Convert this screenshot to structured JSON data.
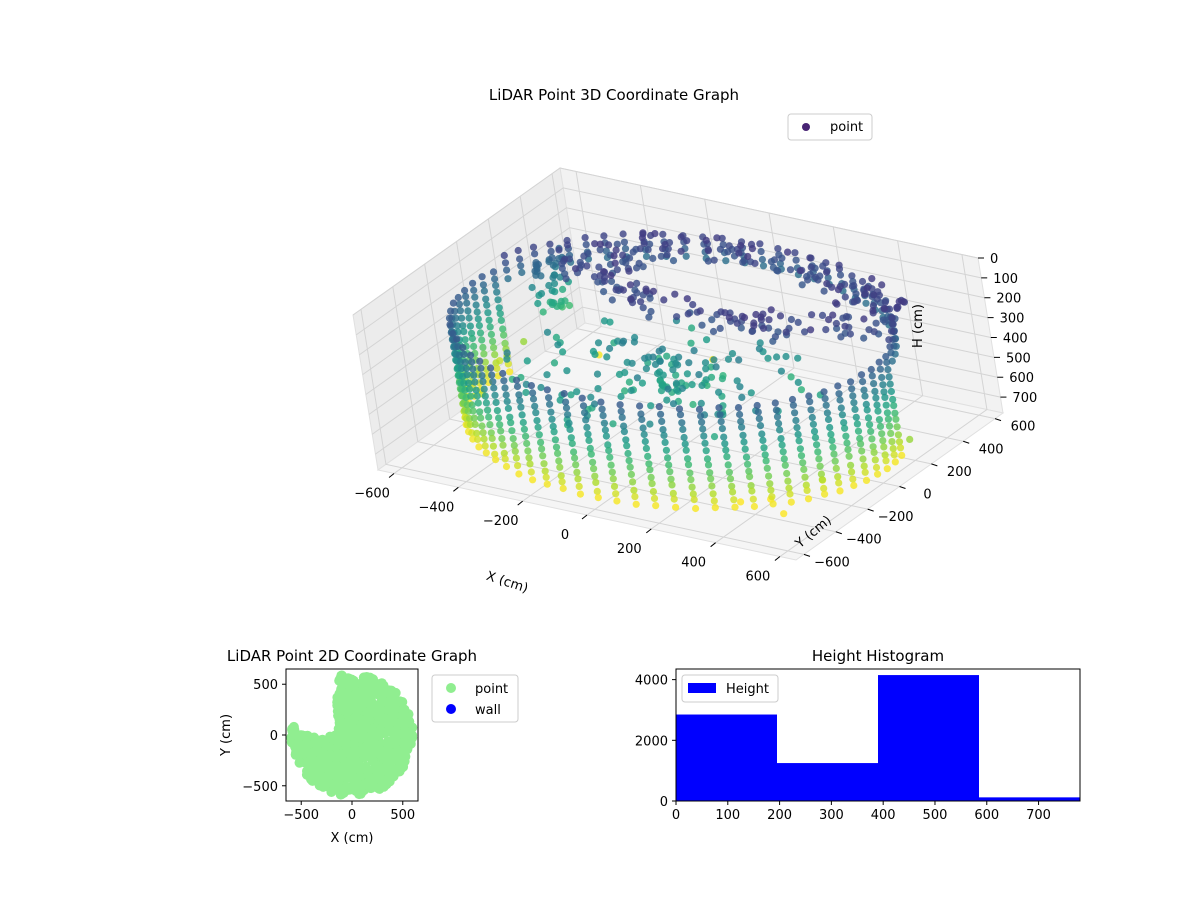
{
  "chart_data": [
    {
      "type": "scatter",
      "projection": "3d",
      "title": "LiDAR Point 3D Coordinate Graph",
      "xlabel": "X (cm)",
      "ylabel": "Y (cm)",
      "zlabel": "H (cm)",
      "xlim": [
        -650,
        650
      ],
      "ylim": [
        -650,
        650
      ],
      "zlim": [
        0,
        780
      ],
      "zaxis_inverted": true,
      "xticks": [
        -600,
        -400,
        -200,
        0,
        200,
        400,
        600
      ],
      "yticks": [
        -600,
        -400,
        -200,
        0,
        200,
        400,
        600
      ],
      "zticks": [
        0,
        100,
        200,
        300,
        400,
        500,
        600,
        700
      ],
      "colormap": "viridis",
      "color_by": "height",
      "grid": true,
      "legend": {
        "entries": [
          "point"
        ],
        "placement": "upper-right"
      },
      "series": [
        {
          "name": "point",
          "description_of_shape": "outer ring wall at radius ~620cm spanning heights 150-700, inner ring top layer at ~200, scattered interior points ~350-450",
          "outliers": [
            {
              "x": -600,
              "y": 200,
              "h": 600
            },
            {
              "x": -630,
              "y": 100,
              "h": 650
            },
            {
              "x": -560,
              "y": -150,
              "h": 650
            },
            {
              "x": -450,
              "y": 350,
              "h": 700
            },
            {
              "x": -200,
              "y": 550,
              "h": 750
            },
            {
              "x": 650,
              "y": 100,
              "h": 600
            },
            {
              "x": 400,
              "y": -300,
              "h": 760
            },
            {
              "x": 480,
              "y": -380,
              "h": 760
            },
            {
              "x": 330,
              "y": -350,
              "h": 770
            },
            {
              "x": 520,
              "y": -200,
              "h": 680
            }
          ]
        }
      ]
    },
    {
      "type": "scatter",
      "title": "LiDAR Point 2D Coordinate Graph",
      "xlabel": "X (cm)",
      "ylabel": "Y (cm)",
      "xlim": [
        -650,
        650
      ],
      "ylim": [
        -650,
        650
      ],
      "xticks": [
        -500,
        0,
        500
      ],
      "yticks": [
        -500,
        0,
        500
      ],
      "legend": {
        "entries": [
          "point",
          "wall"
        ],
        "placement": "outside-right"
      },
      "series": [
        {
          "name": "point",
          "color": "#90ee90",
          "shape": "dense disc of radius ~600cm with a notch in the upper-left"
        },
        {
          "name": "wall",
          "color": "#0000ff",
          "values": []
        }
      ]
    },
    {
      "type": "bar",
      "subtype": "histogram",
      "title": "Height Histogram",
      "legend": {
        "entries": [
          "Height"
        ],
        "placement": "upper-left"
      },
      "color": "#0000ff",
      "bins": [
        0,
        195,
        390,
        585,
        780
      ],
      "counts": [
        2850,
        1250,
        4150,
        120
      ],
      "xlim": [
        0,
        780
      ],
      "ylim": [
        0,
        4350
      ],
      "xticks": [
        0,
        100,
        200,
        300,
        400,
        500,
        600,
        700
      ],
      "yticks": [
        0,
        2000,
        4000
      ]
    }
  ]
}
